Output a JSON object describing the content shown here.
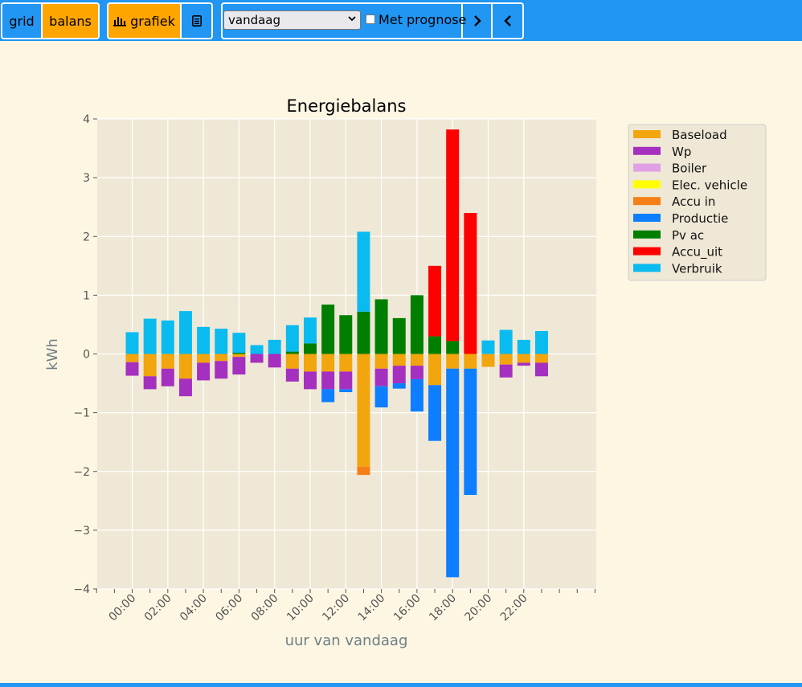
{
  "toolbar": {
    "grid_label": "grid",
    "balans_label": "balans",
    "grafiek_label": "grafiek",
    "period_value": "vandaag",
    "prognose_label": "Met prognose",
    "prognose_checked": false
  },
  "colors": {
    "accent": "#2196f3",
    "active": "#ffa500",
    "content_bg": "#fdf6e3",
    "plot_bg": "#efe8d6"
  },
  "chart_data": {
    "type": "bar",
    "title": "Energiebalans",
    "xlabel": "uur van vandaag",
    "ylabel": "kWh",
    "ylim": [
      -4,
      4
    ],
    "yticks": [
      "−4",
      "−3",
      "−2",
      "−1",
      "0",
      "1",
      "2",
      "3",
      "4"
    ],
    "xticks": [
      "00:00",
      "02:00",
      "04:00",
      "06:00",
      "08:00",
      "10:00",
      "12:00",
      "14:00",
      "16:00",
      "18:00",
      "20:00",
      "22:00"
    ],
    "legend_position": "top-right-outside",
    "hours": [
      0,
      1,
      2,
      3,
      4,
      5,
      6,
      7,
      8,
      9,
      10,
      11,
      12,
      13,
      14,
      15,
      16,
      17,
      18,
      19,
      20,
      21,
      22,
      23
    ],
    "series": [
      {
        "name": "Baseload",
        "color": "#f2a50c",
        "values": [
          -0.14,
          -0.38,
          -0.25,
          -0.42,
          -0.15,
          -0.12,
          -0.05,
          0,
          0,
          -0.25,
          -0.3,
          -0.3,
          -0.3,
          -1.92,
          -0.25,
          -0.2,
          -0.2,
          -0.53,
          -0.25,
          -0.25,
          -0.22,
          -0.18,
          -0.15,
          -0.15
        ]
      },
      {
        "name": "Wp",
        "color": "#a52fbe",
        "values": [
          -0.23,
          -0.22,
          -0.3,
          -0.3,
          -0.3,
          -0.3,
          -0.3,
          -0.15,
          -0.23,
          -0.22,
          -0.3,
          -0.3,
          -0.3,
          0,
          -0.3,
          -0.3,
          -0.23,
          0,
          0,
          0,
          0,
          -0.22,
          -0.05,
          -0.23
        ]
      },
      {
        "name": "Boiler",
        "color": "#e0a0e6",
        "values": [
          0,
          0,
          0,
          0,
          0,
          0,
          0,
          0,
          0,
          0,
          0,
          0,
          0,
          0,
          0,
          0,
          0,
          0,
          0,
          0,
          0,
          0,
          0,
          0
        ]
      },
      {
        "name": "Elec. vehicle",
        "color": "#ffff00",
        "values": [
          0,
          0,
          0,
          0,
          0,
          0,
          0,
          0,
          0,
          0,
          0,
          0,
          0,
          0,
          0,
          0,
          0,
          0,
          0,
          0,
          0,
          0,
          0,
          0
        ]
      },
      {
        "name": "Accu in",
        "color": "#f57f17",
        "values": [
          0,
          0,
          0,
          0,
          0,
          0,
          0,
          0,
          0,
          0,
          0,
          0,
          0,
          -0.14,
          0,
          0,
          0,
          0,
          0,
          0,
          0,
          0,
          0,
          0
        ]
      },
      {
        "name": "Productie",
        "color": "#0d7eff",
        "values": [
          0,
          0,
          0,
          0,
          0,
          0,
          0,
          0,
          0,
          0,
          0,
          -0.22,
          -0.05,
          0,
          -0.36,
          -0.09,
          -0.55,
          -0.95,
          -3.55,
          -2.15,
          0,
          0,
          0,
          0
        ]
      },
      {
        "name": "Pv ac",
        "color": "#007e00",
        "values": [
          0,
          0,
          0,
          0,
          0,
          0,
          0.02,
          0,
          0,
          0.04,
          0.18,
          0.84,
          0.66,
          0.72,
          0.93,
          0.61,
          1,
          0.3,
          0.22,
          0,
          0,
          0,
          0,
          0
        ]
      },
      {
        "name": "Accu_uit",
        "color": "#ff0000",
        "values": [
          0,
          0,
          0,
          0,
          0,
          0,
          0,
          0,
          0,
          0,
          0,
          0,
          0,
          0,
          0,
          0,
          0,
          1.2,
          3.6,
          2.4,
          0,
          0,
          0,
          0
        ]
      },
      {
        "name": "Verbruik",
        "color": "#0abbef",
        "values": [
          0.37,
          0.6,
          0.57,
          0.73,
          0.46,
          0.43,
          0.34,
          0.15,
          0.24,
          0.45,
          0.44,
          0,
          0,
          1.36,
          0,
          0,
          0,
          0,
          0,
          0,
          0.23,
          0.41,
          0.24,
          0.39
        ]
      }
    ]
  }
}
